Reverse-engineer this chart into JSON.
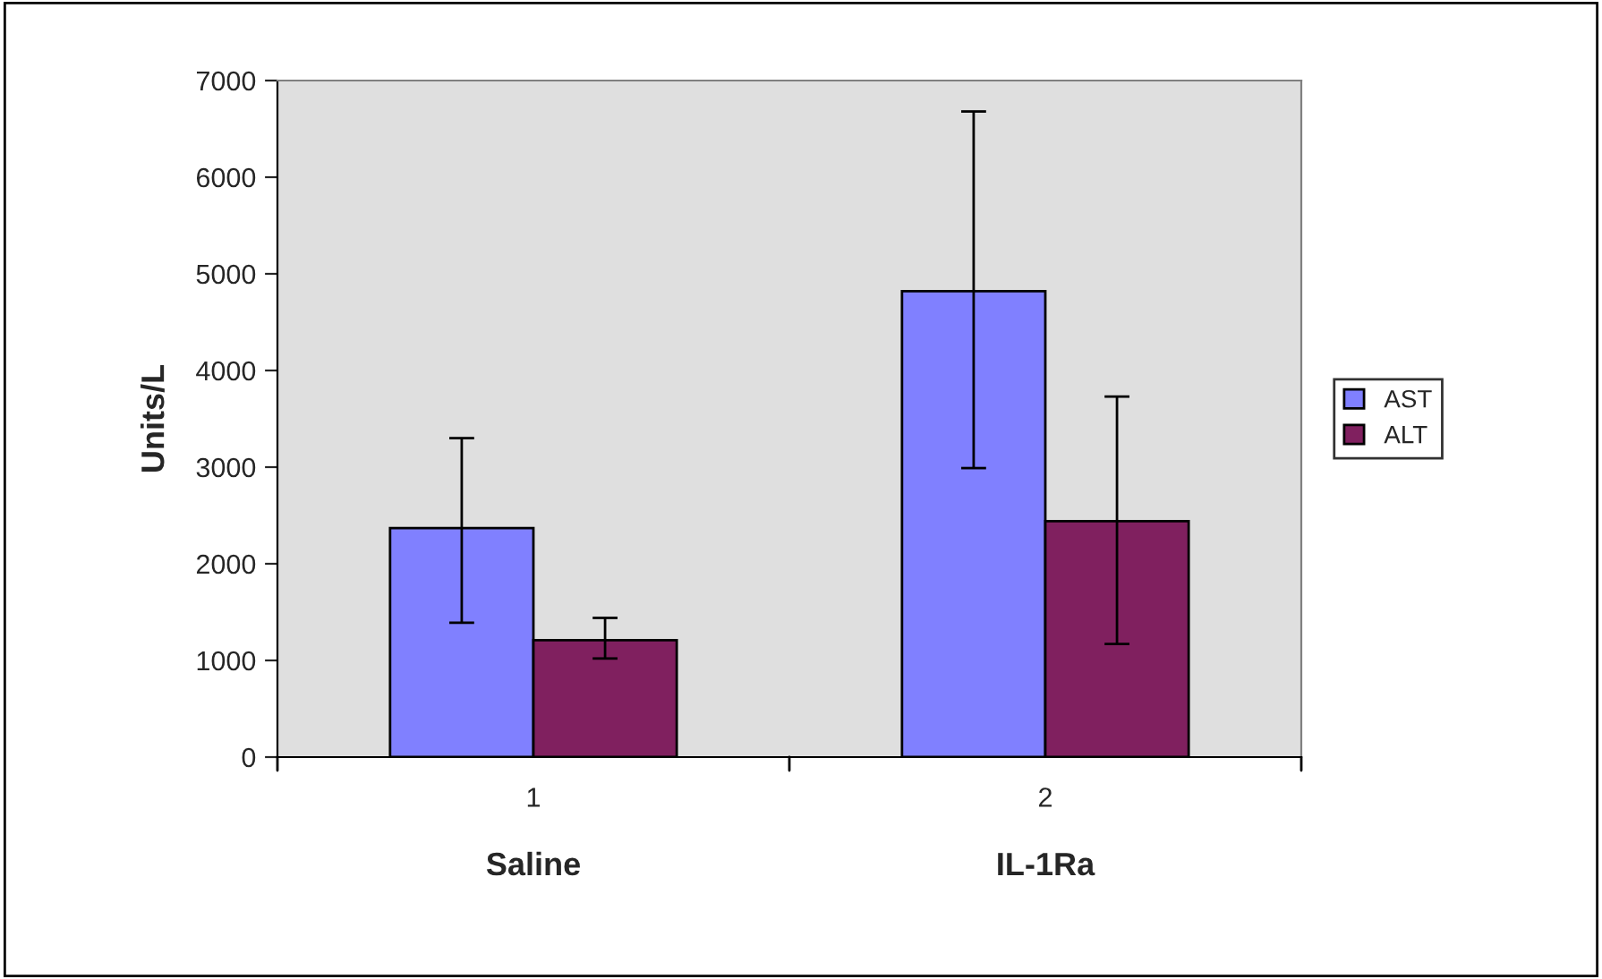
{
  "chart_data": {
    "type": "bar",
    "ylabel": "Units/L",
    "categories": [
      "1",
      "2"
    ],
    "series": [
      {
        "name": "AST",
        "color": "#8080ff",
        "values": [
          2370,
          4820
        ],
        "errors": [
          [
            1390,
            3300
          ],
          [
            2990,
            6680
          ]
        ]
      },
      {
        "name": "ALT",
        "color": "#80205f",
        "values": [
          1210,
          2440
        ],
        "errors": [
          [
            1020,
            1440
          ],
          [
            1170,
            3730
          ]
        ]
      }
    ],
    "annotations": [
      "Saline",
      "IL-1Ra"
    ],
    "ylim": [
      0,
      7000
    ],
    "yticks": [
      0,
      1000,
      2000,
      3000,
      4000,
      5000,
      6000,
      7000
    ],
    "grid": false,
    "legend": "right"
  }
}
